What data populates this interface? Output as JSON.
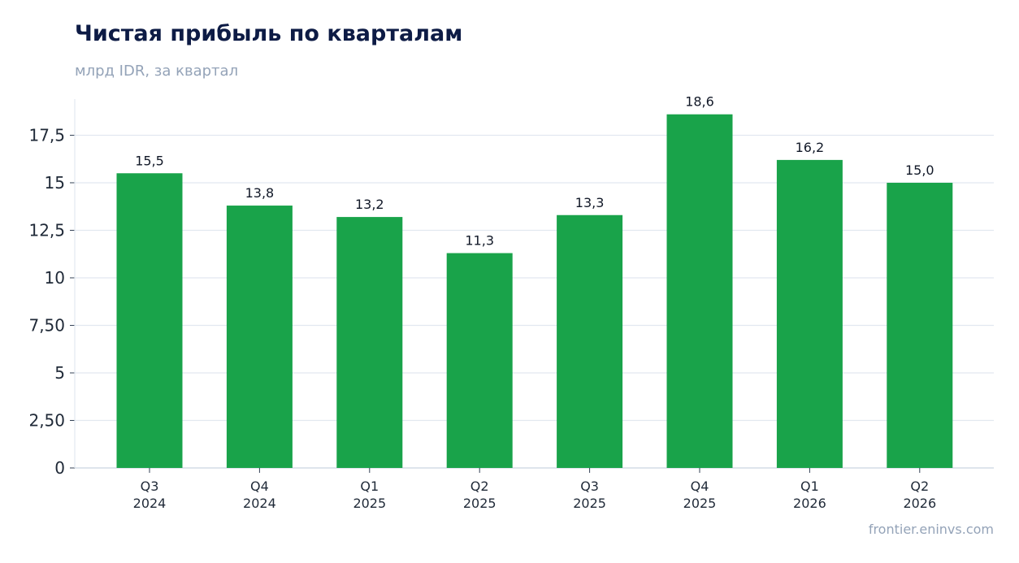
{
  "chart_data": {
    "type": "bar",
    "title": "Чистая прибыль по кварталам",
    "subtitle": "млрд IDR, за квартал",
    "categories": [
      [
        "Q3",
        "2024"
      ],
      [
        "Q4",
        "2024"
      ],
      [
        "Q1",
        "2025"
      ],
      [
        "Q2",
        "2025"
      ],
      [
        "Q3",
        "2025"
      ],
      [
        "Q4",
        "2025"
      ],
      [
        "Q1",
        "2026"
      ],
      [
        "Q2",
        "2026"
      ]
    ],
    "values": [
      15.5,
      13.8,
      13.2,
      11.3,
      13.3,
      18.6,
      16.2,
      15.0
    ],
    "data_labels": [
      "15,5",
      "13,8",
      "13,2",
      "11,3",
      "13,3",
      "18,6",
      "16,2",
      "15,0"
    ],
    "yticks": [
      0,
      2.5,
      5,
      7.5,
      10,
      12.5,
      15,
      17.5
    ],
    "ytick_labels": [
      "0",
      "2,50",
      "5",
      "7,50",
      "10",
      "12,5",
      "15",
      "17,5"
    ],
    "ylim": [
      0,
      19.4
    ],
    "xlabel": "",
    "ylabel": "",
    "grid": true,
    "legend": "none",
    "bar_color": "#19a34a",
    "grid_color": "#e2e8f0",
    "source": "frontier.eninvs.com"
  }
}
